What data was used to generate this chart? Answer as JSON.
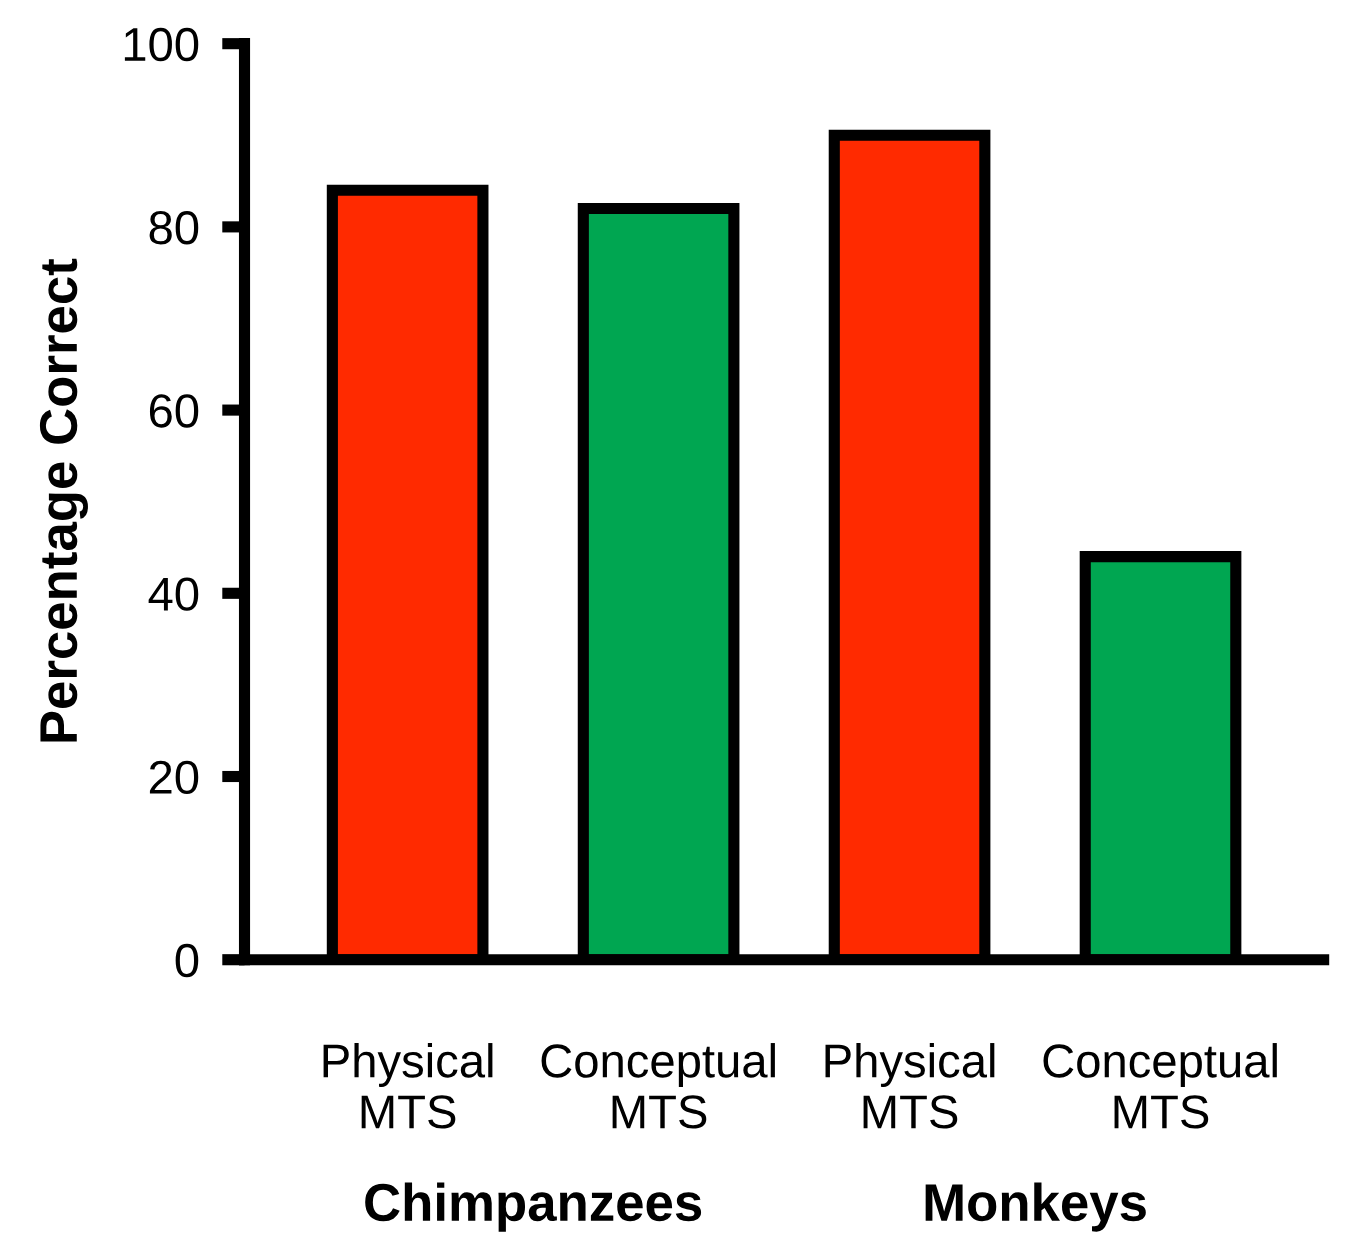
{
  "chart_data": {
    "type": "bar",
    "ylabel": "Percentage Correct",
    "categories": [
      "Physical\nMTS",
      "Conceptual\nMTS",
      "Physical\nMTS",
      "Conceptual\nMTS"
    ],
    "values": [
      84,
      82,
      90,
      44
    ],
    "colors": [
      "#ff2a00",
      "#00a651",
      "#ff2a00",
      "#00a651"
    ],
    "ylim": [
      0,
      100
    ],
    "yticks": [
      0,
      20,
      40,
      60,
      80,
      100
    ],
    "grid": false,
    "legend": false,
    "annotations": [
      "Chimpanzees",
      "Monkeys"
    ]
  }
}
